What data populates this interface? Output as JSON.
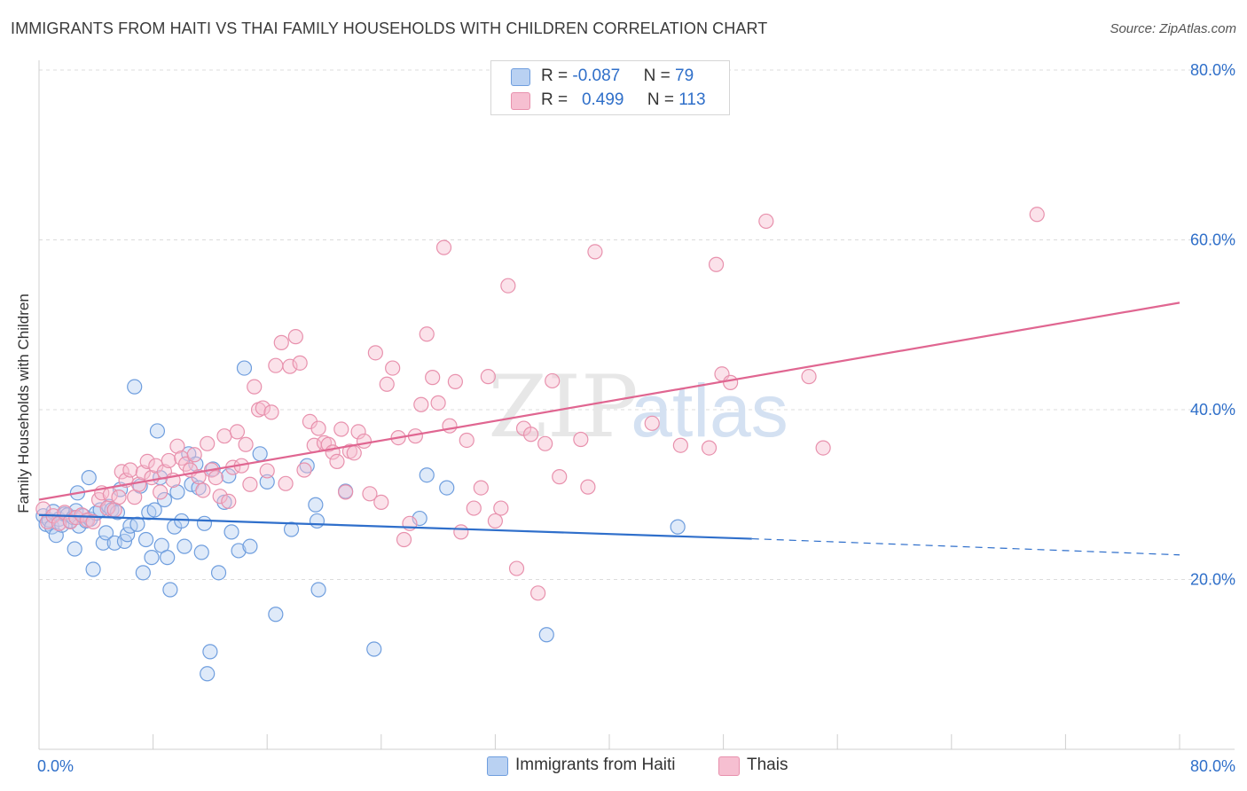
{
  "header": {
    "title": "IMMIGRANTS FROM HAITI VS THAI FAMILY HOUSEHOLDS WITH CHILDREN CORRELATION CHART",
    "source": "Source: ZipAtlas.com"
  },
  "watermark": {
    "zip": "ZIP",
    "atlas": "atlas"
  },
  "legend": {
    "rows": [
      {
        "r_label": "R = ",
        "r_value": "-0.087",
        "n_label": "N = ",
        "n_value": "79"
      },
      {
        "r_label": "R = ",
        "r_value": "0.499",
        "n_label": "N = ",
        "n_value": "113"
      }
    ]
  },
  "colors": {
    "haiti_fill": "#b9d1f2",
    "haiti_stroke": "#6f9ede",
    "haiti_line": "#2f6fcb",
    "thai_fill": "#f6bfd1",
    "thai_stroke": "#e891ad",
    "thai_line": "#e06691",
    "tick_label": "#2f6fc9",
    "grid": "#dcdcdc"
  },
  "chart_data": {
    "type": "scatter",
    "ylabel": "Family Households with Children",
    "xlim": [
      0,
      80
    ],
    "ylim": [
      0,
      80
    ],
    "x_tick_labels": [
      "0.0%",
      "80.0%"
    ],
    "y_tick_labels": [
      "20.0%",
      "40.0%",
      "60.0%",
      "80.0%"
    ],
    "y_ticks": [
      20,
      40,
      60,
      80
    ],
    "grid": "horizontal dashed",
    "legend_position": "top-center",
    "series": [
      {
        "name": "Immigrants from Haiti",
        "trend": {
          "x": [
            0,
            50
          ],
          "y": [
            27.6,
            24.8
          ],
          "dashed_to": [
            80,
            22.9
          ]
        },
        "points": [
          [
            0.3,
            27.5
          ],
          [
            0.5,
            26.5
          ],
          [
            0.7,
            27
          ],
          [
            0.9,
            26.2
          ],
          [
            1,
            28
          ],
          [
            1.2,
            25.2
          ],
          [
            1.4,
            27.1
          ],
          [
            1.6,
            26.4
          ],
          [
            1.8,
            27.7
          ],
          [
            2,
            27.6
          ],
          [
            2.2,
            26.9
          ],
          [
            2.4,
            27.3
          ],
          [
            2.6,
            28.1
          ],
          [
            2.8,
            26.3
          ],
          [
            2.5,
            23.6
          ],
          [
            2.7,
            30.2
          ],
          [
            3.1,
            27.5
          ],
          [
            3.3,
            26.9
          ],
          [
            3.5,
            32
          ],
          [
            3.6,
            27.1
          ],
          [
            3.8,
            21.2
          ],
          [
            4,
            27.8
          ],
          [
            4.3,
            28.2
          ],
          [
            4.5,
            24.3
          ],
          [
            4.7,
            25.5
          ],
          [
            4.9,
            28.6
          ],
          [
            5.1,
            28.2
          ],
          [
            5.3,
            24.3
          ],
          [
            5.5,
            27.9
          ],
          [
            5.7,
            30.6
          ],
          [
            6,
            24.5
          ],
          [
            6.2,
            25.3
          ],
          [
            6.4,
            26.3
          ],
          [
            6.7,
            42.7
          ],
          [
            6.9,
            26.5
          ],
          [
            7.1,
            31
          ],
          [
            7.3,
            20.8
          ],
          [
            7.5,
            24.7
          ],
          [
            7.7,
            27.9
          ],
          [
            7.9,
            22.6
          ],
          [
            8.1,
            28.2
          ],
          [
            8.3,
            37.5
          ],
          [
            8.5,
            32
          ],
          [
            8.8,
            29.4
          ],
          [
            8.6,
            24
          ],
          [
            9,
            22.6
          ],
          [
            9.2,
            18.8
          ],
          [
            9.5,
            26.2
          ],
          [
            9.7,
            30.3
          ],
          [
            10,
            26.9
          ],
          [
            10.2,
            23.9
          ],
          [
            10.5,
            34.8
          ],
          [
            10.7,
            31.2
          ],
          [
            11,
            33.6
          ],
          [
            11.2,
            30.8
          ],
          [
            11.4,
            23.2
          ],
          [
            11.6,
            26.6
          ],
          [
            11.8,
            8.9
          ],
          [
            12,
            11.5
          ],
          [
            12.2,
            33
          ],
          [
            12.6,
            20.8
          ],
          [
            13,
            29.1
          ],
          [
            13.3,
            32.2
          ],
          [
            13.5,
            25.6
          ],
          [
            14,
            23.4
          ],
          [
            14.4,
            44.9
          ],
          [
            14.8,
            23.9
          ],
          [
            15.5,
            34.8
          ],
          [
            16,
            31.5
          ],
          [
            16.6,
            15.9
          ],
          [
            17.7,
            25.9
          ],
          [
            18.8,
            33.4
          ],
          [
            19.4,
            28.8
          ],
          [
            19.5,
            26.9
          ],
          [
            19.6,
            18.8
          ],
          [
            21.5,
            30.4
          ],
          [
            23.5,
            11.8
          ],
          [
            26.7,
            27.2
          ],
          [
            27.2,
            32.3
          ],
          [
            28.6,
            30.8
          ],
          [
            35.6,
            13.5
          ],
          [
            44.8,
            26.2
          ]
        ]
      },
      {
        "name": "Thais",
        "trend": {
          "x": [
            0,
            80
          ],
          "y": [
            29.4,
            52.6
          ]
        },
        "points": [
          [
            0.3,
            28.3
          ],
          [
            0.6,
            26.8
          ],
          [
            1,
            27.5
          ],
          [
            1.4,
            26.6
          ],
          [
            1.8,
            27.9
          ],
          [
            2.2,
            26.8
          ],
          [
            2.6,
            27.3
          ],
          [
            3,
            27.6
          ],
          [
            3.4,
            27
          ],
          [
            3.8,
            26.8
          ],
          [
            4.2,
            29.4
          ],
          [
            4.4,
            30.2
          ],
          [
            4.8,
            28.4
          ],
          [
            5,
            30
          ],
          [
            5.3,
            28.2
          ],
          [
            5.6,
            29.7
          ],
          [
            5.8,
            32.7
          ],
          [
            6.1,
            31.7
          ],
          [
            6.4,
            32.9
          ],
          [
            6.7,
            29.7
          ],
          [
            7,
            31.2
          ],
          [
            7.3,
            32.6
          ],
          [
            7.6,
            33.9
          ],
          [
            7.9,
            32
          ],
          [
            8.2,
            33.4
          ],
          [
            8.5,
            30.3
          ],
          [
            8.8,
            32.7
          ],
          [
            9.1,
            34
          ],
          [
            9.4,
            31.7
          ],
          [
            9.7,
            35.7
          ],
          [
            10,
            34.3
          ],
          [
            10.3,
            33.6
          ],
          [
            10.6,
            32.9
          ],
          [
            10.9,
            34.7
          ],
          [
            11.2,
            32.1
          ],
          [
            11.5,
            30.5
          ],
          [
            11.8,
            36
          ],
          [
            12.1,
            32.9
          ],
          [
            12.4,
            32
          ],
          [
            12.7,
            29.8
          ],
          [
            13,
            36.9
          ],
          [
            13.3,
            29.2
          ],
          [
            13.6,
            33.2
          ],
          [
            13.9,
            37.4
          ],
          [
            14.2,
            33.4
          ],
          [
            14.5,
            35.9
          ],
          [
            14.8,
            31.2
          ],
          [
            15.1,
            42.7
          ],
          [
            15.4,
            40
          ],
          [
            15.7,
            40.2
          ],
          [
            16,
            32.8
          ],
          [
            16.3,
            39.7
          ],
          [
            16.6,
            45.2
          ],
          [
            17,
            47.9
          ],
          [
            17.3,
            31.3
          ],
          [
            17.6,
            45.1
          ],
          [
            18,
            48.6
          ],
          [
            18.3,
            45.5
          ],
          [
            18.6,
            32.9
          ],
          [
            19,
            38.6
          ],
          [
            19.3,
            35.8
          ],
          [
            19.6,
            37.8
          ],
          [
            20,
            36.1
          ],
          [
            20.3,
            35.9
          ],
          [
            20.6,
            35
          ],
          [
            20.9,
            33.9
          ],
          [
            21.2,
            37.7
          ],
          [
            21.5,
            30.3
          ],
          [
            21.8,
            35.1
          ],
          [
            22.1,
            34.9
          ],
          [
            22.4,
            37.4
          ],
          [
            22.8,
            36.3
          ],
          [
            23.2,
            30.1
          ],
          [
            23.6,
            46.7
          ],
          [
            24,
            29.1
          ],
          [
            24.4,
            43
          ],
          [
            24.8,
            44.9
          ],
          [
            25.2,
            36.7
          ],
          [
            25.6,
            24.7
          ],
          [
            26,
            26.6
          ],
          [
            26.4,
            36.9
          ],
          [
            26.8,
            40.6
          ],
          [
            27.2,
            48.9
          ],
          [
            27.6,
            43.8
          ],
          [
            28,
            40.8
          ],
          [
            28.4,
            59.1
          ],
          [
            28.8,
            38.1
          ],
          [
            29.2,
            43.3
          ],
          [
            29.6,
            25.6
          ],
          [
            30,
            36.4
          ],
          [
            30.5,
            28.4
          ],
          [
            31,
            30.8
          ],
          [
            31.5,
            43.9
          ],
          [
            32,
            26.9
          ],
          [
            32.4,
            28.4
          ],
          [
            32.9,
            54.6
          ],
          [
            33.5,
            21.3
          ],
          [
            34,
            37.8
          ],
          [
            34.5,
            37.1
          ],
          [
            35,
            18.4
          ],
          [
            35.5,
            36
          ],
          [
            36,
            43.4
          ],
          [
            36.5,
            32.1
          ],
          [
            38,
            36.5
          ],
          [
            38.5,
            30.9
          ],
          [
            39,
            58.6
          ],
          [
            43,
            38.4
          ],
          [
            45,
            35.8
          ],
          [
            47,
            35.5
          ],
          [
            47.5,
            57.1
          ],
          [
            47.9,
            44.2
          ],
          [
            48.5,
            43.2
          ],
          [
            51,
            62.2
          ],
          [
            54,
            43.9
          ],
          [
            55,
            35.5
          ],
          [
            70,
            63
          ]
        ]
      }
    ]
  },
  "bottom_legend": [
    {
      "label": "Immigrants from Haiti"
    },
    {
      "label": "Thais"
    }
  ]
}
